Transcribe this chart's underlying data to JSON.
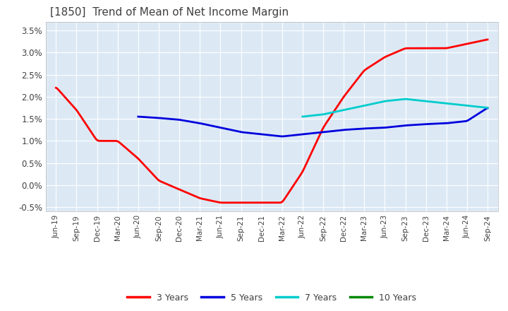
{
  "title": "[1850]  Trend of Mean of Net Income Margin",
  "title_color": "#404040",
  "background_color": "#ffffff",
  "plot_background_color": "#dce9f5",
  "grid_color": "#ffffff",
  "ylim": [
    -0.006,
    0.037
  ],
  "yticks": [
    -0.005,
    0.0,
    0.005,
    0.01,
    0.015,
    0.02,
    0.025,
    0.03,
    0.035
  ],
  "ytick_labels": [
    "-0.5%",
    "0.0%",
    "0.5%",
    "1.0%",
    "1.5%",
    "2.0%",
    "2.5%",
    "3.0%",
    "3.5%"
  ],
  "x_labels": [
    "Jun-19",
    "Sep-19",
    "Dec-19",
    "Mar-20",
    "Jun-20",
    "Sep-20",
    "Dec-20",
    "Mar-21",
    "Jun-21",
    "Sep-21",
    "Dec-21",
    "Mar-22",
    "Jun-22",
    "Sep-22",
    "Dec-22",
    "Mar-23",
    "Jun-23",
    "Sep-23",
    "Dec-23",
    "Mar-24",
    "Jun-24",
    "Sep-24"
  ],
  "series": {
    "3 Years": {
      "color": "#ff0000",
      "linewidth": 2.0,
      "values": [
        0.0222,
        0.017,
        0.01,
        0.01,
        0.006,
        0.001,
        -0.001,
        -0.003,
        -0.004,
        -0.004,
        -0.004,
        -0.004,
        0.003,
        0.013,
        0.02,
        0.026,
        0.029,
        0.031,
        0.031,
        0.031,
        0.032,
        0.033
      ]
    },
    "5 Years": {
      "color": "#0000dd",
      "linewidth": 2.0,
      "values": [
        null,
        null,
        null,
        null,
        0.0155,
        0.0152,
        0.0148,
        0.014,
        0.013,
        0.012,
        0.0115,
        0.011,
        0.0115,
        0.012,
        0.0125,
        0.0128,
        0.013,
        0.0135,
        0.0138,
        0.014,
        0.0145,
        0.0175
      ]
    },
    "7 Years": {
      "color": "#00cccc",
      "linewidth": 2.0,
      "values": [
        null,
        null,
        null,
        null,
        null,
        null,
        null,
        null,
        null,
        null,
        null,
        null,
        0.0155,
        0.016,
        0.017,
        0.018,
        0.019,
        0.0195,
        0.019,
        0.0185,
        0.018,
        0.0175
      ]
    },
    "10 Years": {
      "color": "#008800",
      "linewidth": 2.0,
      "values": [
        null,
        null,
        null,
        null,
        null,
        null,
        null,
        null,
        null,
        null,
        null,
        null,
        null,
        null,
        null,
        null,
        null,
        null,
        null,
        null,
        null,
        null
      ]
    }
  },
  "legend_labels": [
    "3 Years",
    "5 Years",
    "7 Years",
    "10 Years"
  ],
  "legend_colors": [
    "#ff0000",
    "#0000dd",
    "#00cccc",
    "#008800"
  ]
}
